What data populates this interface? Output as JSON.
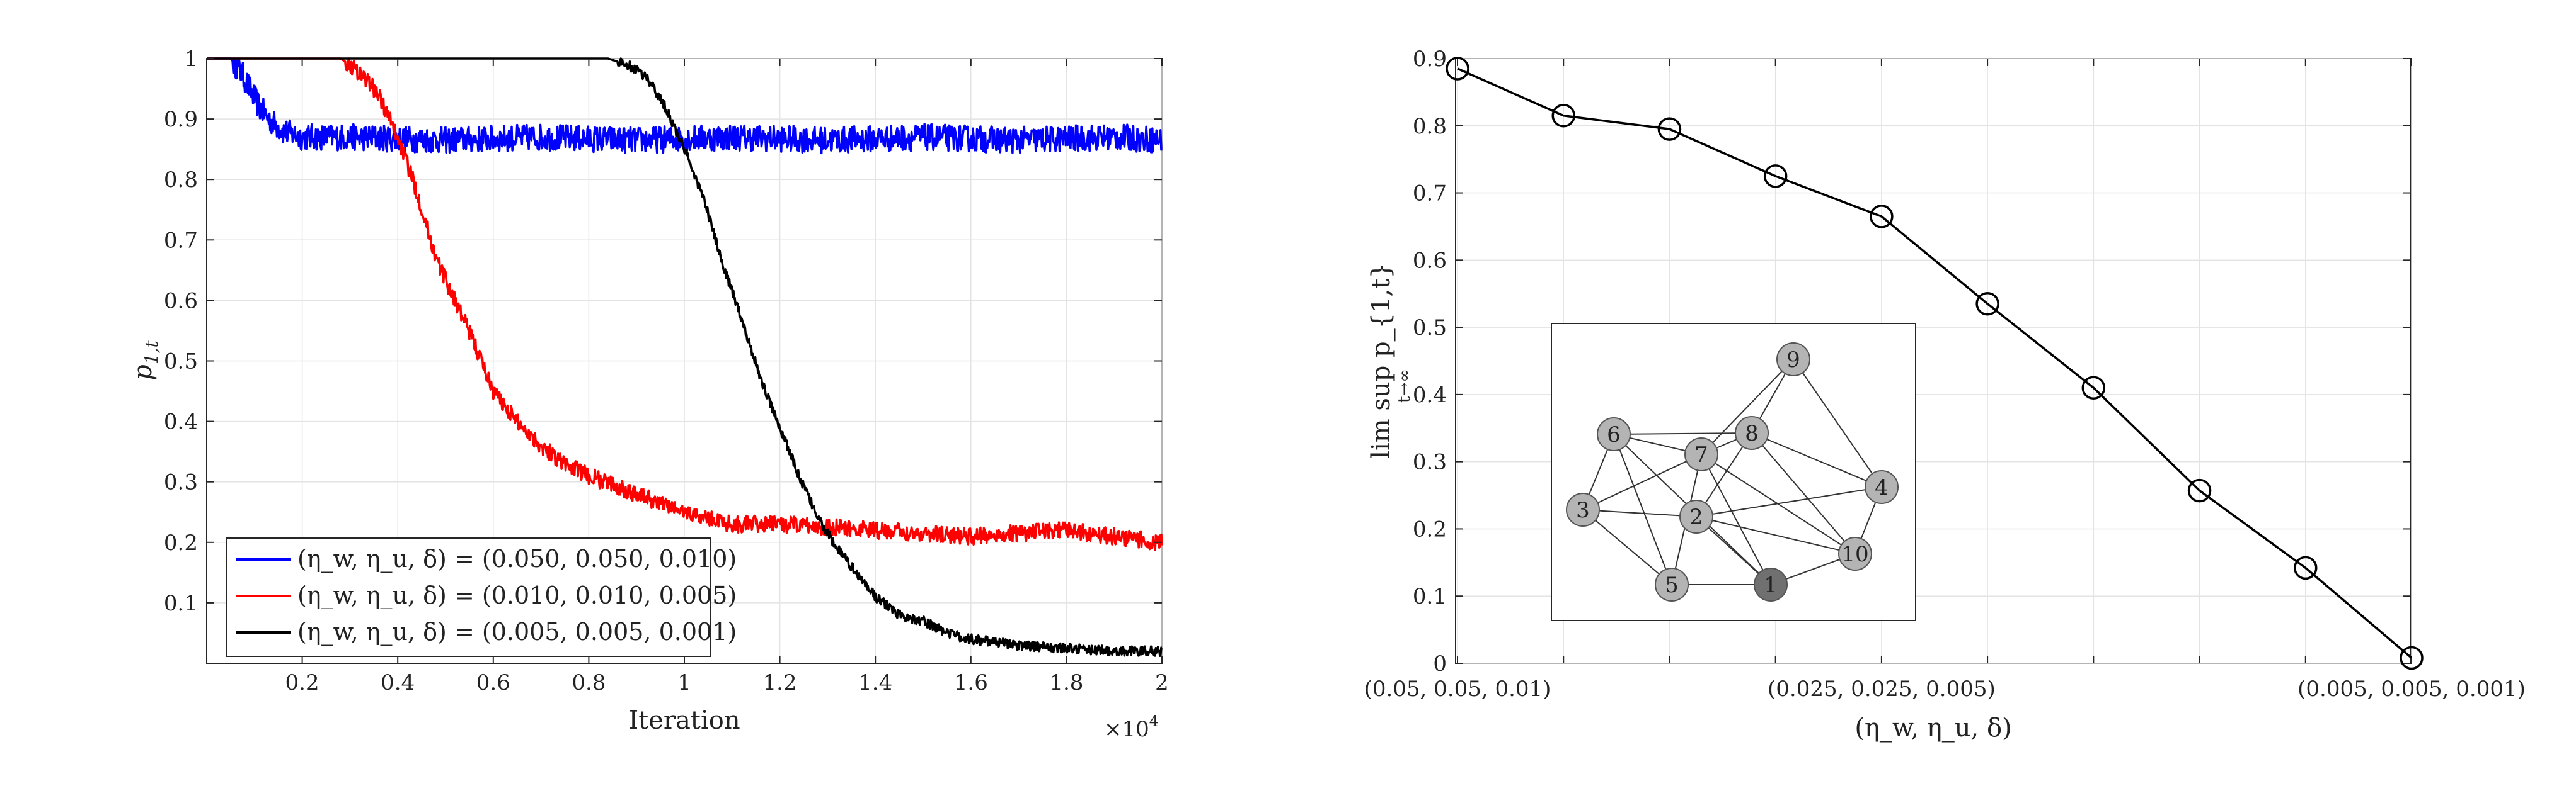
{
  "chart_data": [
    {
      "type": "line",
      "xlabel": "Iteration",
      "ylabel": "p_{1,t}",
      "x_exponent_label": "×10",
      "x_exponent_power": "4",
      "xlim": [
        0,
        20000
      ],
      "ylim": [
        0,
        1
      ],
      "x_ticks": [
        2000,
        4000,
        6000,
        8000,
        10000,
        12000,
        14000,
        16000,
        18000,
        20000
      ],
      "x_tick_labels": [
        "0.2",
        "0.4",
        "0.6",
        "0.8",
        "1",
        "1.2",
        "1.4",
        "1.6",
        "1.8",
        "2"
      ],
      "y_ticks": [
        0.1,
        0.2,
        0.3,
        0.4,
        0.5,
        0.6,
        0.7,
        0.8,
        0.9,
        1
      ],
      "y_tick_labels": [
        "0.1",
        "0.2",
        "0.3",
        "0.4",
        "0.5",
        "0.6",
        "0.7",
        "0.8",
        "0.9",
        "1"
      ],
      "grid": true,
      "legend_position": "bottom-left",
      "series": [
        {
          "name": "(η_w, η_u, δ) = (0.050, 0.050, 0.010)",
          "color": "#0000ff",
          "x": [
            0,
            500,
            700,
            900,
            1100,
            1300,
            1600,
            2000,
            3000,
            5000,
            7000,
            9000,
            11000,
            13000,
            15000,
            17000,
            19000,
            20000
          ],
          "y": [
            1.0,
            1.0,
            0.98,
            0.95,
            0.92,
            0.9,
            0.88,
            0.87,
            0.87,
            0.865,
            0.87,
            0.865,
            0.87,
            0.865,
            0.87,
            0.865,
            0.87,
            0.865
          ]
        },
        {
          "name": "(η_w, η_u, δ) = (0.010, 0.010, 0.005)",
          "color": "#ff0000",
          "x": [
            0,
            2500,
            2800,
            3000,
            3300,
            3600,
            4000,
            4400,
            4800,
            5200,
            5600,
            6000,
            6500,
            7000,
            7500,
            8000,
            9000,
            10000,
            11000,
            12000,
            14000,
            16000,
            18000,
            20000
          ],
          "y": [
            1.0,
            1.0,
            1.0,
            0.99,
            0.97,
            0.94,
            0.87,
            0.78,
            0.67,
            0.6,
            0.53,
            0.45,
            0.4,
            0.36,
            0.33,
            0.31,
            0.28,
            0.25,
            0.23,
            0.23,
            0.22,
            0.21,
            0.22,
            0.2
          ]
        },
        {
          "name": "(η_w, η_u, δ) = (0.005, 0.005, 0.001)",
          "color": "#000000",
          "x": [
            0,
            8400,
            8800,
            9200,
            9600,
            10000,
            10400,
            10800,
            11200,
            11600,
            12000,
            12400,
            12800,
            13200,
            13600,
            14000,
            14500,
            15000,
            15500,
            16000,
            17000,
            18000,
            19000,
            20000
          ],
          "y": [
            1.0,
            1.0,
            0.99,
            0.97,
            0.92,
            0.85,
            0.77,
            0.66,
            0.57,
            0.47,
            0.39,
            0.31,
            0.24,
            0.19,
            0.15,
            0.11,
            0.08,
            0.07,
            0.05,
            0.04,
            0.03,
            0.025,
            0.02,
            0.02
          ]
        }
      ]
    },
    {
      "type": "line",
      "xlabel": "(η_w, η_u, δ)",
      "ylabel": "lim sup p_{1,t}",
      "ylabel_sub": "t→∞",
      "ylim": [
        0,
        0.9
      ],
      "y_ticks": [
        0,
        0.1,
        0.2,
        0.3,
        0.4,
        0.5,
        0.6,
        0.7,
        0.8,
        0.9
      ],
      "y_tick_labels": [
        "0",
        "0.1",
        "0.2",
        "0.3",
        "0.4",
        "0.5",
        "0.6",
        "0.7",
        "0.8",
        "0.9"
      ],
      "x_tick_labels": [
        "(0.05, 0.05, 0.01)",
        "",
        "",
        "",
        "(0.025, 0.025, 0.005)",
        "",
        "",
        "",
        "",
        "(0.005, 0.005, 0.001)"
      ],
      "grid": true,
      "marker": "circle",
      "color": "#000000",
      "x": [
        1,
        2,
        3,
        4,
        5,
        6,
        7,
        8,
        9,
        10
      ],
      "values": [
        0.885,
        0.815,
        0.795,
        0.725,
        0.665,
        0.535,
        0.41,
        0.257,
        0.142,
        0.008
      ]
    }
  ],
  "inset_graph": {
    "nodes": [
      {
        "label": "1",
        "fill": "#707070"
      },
      {
        "label": "2",
        "fill": "#b4b4b4"
      },
      {
        "label": "3",
        "fill": "#b4b4b4"
      },
      {
        "label": "4",
        "fill": "#b4b4b4"
      },
      {
        "label": "5",
        "fill": "#b4b4b4"
      },
      {
        "label": "6",
        "fill": "#b4b4b4"
      },
      {
        "label": "7",
        "fill": "#b4b4b4"
      },
      {
        "label": "8",
        "fill": "#b4b4b4"
      },
      {
        "label": "9",
        "fill": "#b4b4b4"
      },
      {
        "label": "10",
        "fill": "#b4b4b4"
      }
    ],
    "edges": [
      [
        "6",
        "7"
      ],
      [
        "6",
        "8"
      ],
      [
        "6",
        "3"
      ],
      [
        "6",
        "5"
      ],
      [
        "6",
        "1"
      ],
      [
        "7",
        "8"
      ],
      [
        "7",
        "9"
      ],
      [
        "7",
        "1"
      ],
      [
        "7",
        "5"
      ],
      [
        "7",
        "3"
      ],
      [
        "8",
        "9"
      ],
      [
        "8",
        "2"
      ],
      [
        "8",
        "4"
      ],
      [
        "8",
        "10"
      ],
      [
        "9",
        "4"
      ],
      [
        "3",
        "2"
      ],
      [
        "3",
        "5"
      ],
      [
        "2",
        "1"
      ],
      [
        "2",
        "4"
      ],
      [
        "2",
        "10"
      ],
      [
        "5",
        "1"
      ],
      [
        "1",
        "10"
      ],
      [
        "10",
        "4"
      ],
      [
        "7",
        "10"
      ]
    ]
  }
}
